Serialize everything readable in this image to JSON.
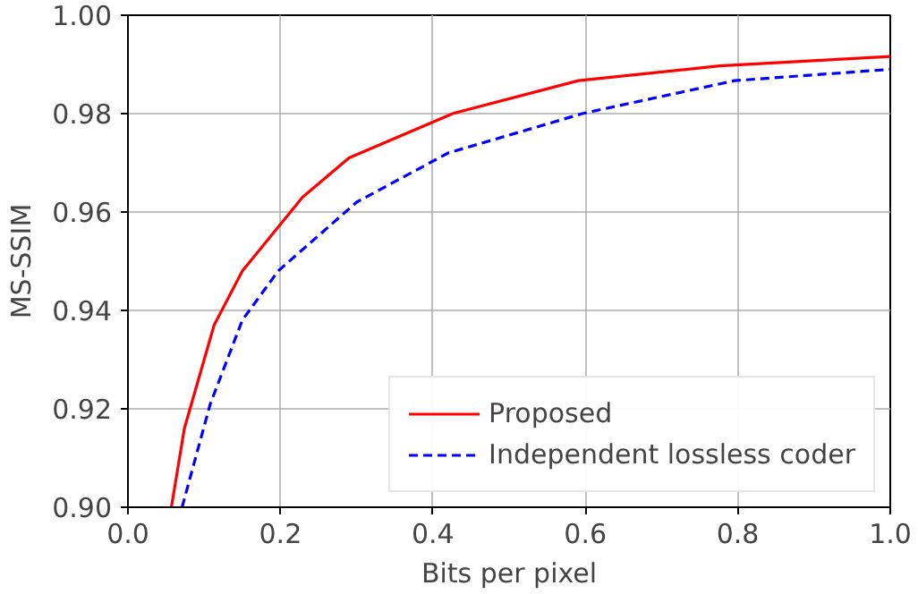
{
  "chart_data": {
    "type": "line",
    "xlabel": "Bits per pixel",
    "ylabel": "MS-SSIM",
    "xlim": [
      0.0,
      1.0
    ],
    "ylim": [
      0.9,
      1.0
    ],
    "xticks": [
      {
        "value": 0,
        "label": "0.0"
      },
      {
        "value": 0.2,
        "label": "0.2"
      },
      {
        "value": 0.4,
        "label": "0.4"
      },
      {
        "value": 0.6,
        "label": "0.6"
      },
      {
        "value": 0.8,
        "label": "0.8"
      },
      {
        "value": 1,
        "label": "1.0"
      }
    ],
    "yticks": [
      {
        "value": 0.9,
        "label": "0.90"
      },
      {
        "value": 0.92,
        "label": "0.92"
      },
      {
        "value": 0.94,
        "label": "0.94"
      },
      {
        "value": 0.96,
        "label": "0.96"
      },
      {
        "value": 0.98,
        "label": "0.98"
      },
      {
        "value": 1,
        "label": "1.00"
      }
    ],
    "grid": true,
    "legend": "bottom right",
    "series": [
      {
        "name": "Proposed",
        "color": "#ff0000",
        "line_style": "solid",
        "x": [
          0.057,
          0.074,
          0.113,
          0.15,
          0.229,
          0.29,
          0.426,
          0.591,
          0.776,
          1.0
        ],
        "values": [
          0.9,
          0.916,
          0.937,
          0.948,
          0.963,
          0.971,
          0.98,
          0.9867,
          0.9897,
          0.9916
        ]
      },
      {
        "name": "Independent lossless coder",
        "color": "#0000ff",
        "line_style": "dashed",
        "x": [
          0.071,
          0.108,
          0.15,
          0.197,
          0.3,
          0.42,
          0.596,
          0.796,
          1.0
        ],
        "values": [
          0.9,
          0.921,
          0.938,
          0.948,
          0.962,
          0.972,
          0.98,
          0.9867,
          0.989
        ]
      }
    ]
  }
}
